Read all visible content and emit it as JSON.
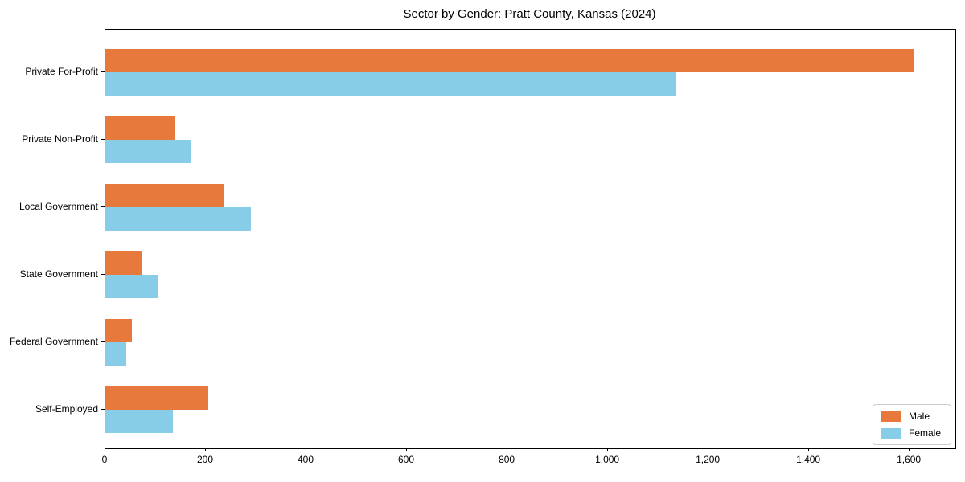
{
  "title": "Sector by Gender: Pratt County, Kansas (2024)",
  "colors": {
    "male": "#e8793d",
    "female": "#87cde8",
    "axis": "#000000",
    "legend_border": "#cccccc",
    "background": "#ffffff"
  },
  "chart_data": {
    "type": "bar",
    "orientation": "horizontal",
    "title": "Sector by Gender: Pratt County, Kansas (2024)",
    "categories": [
      "Private For-Profit",
      "Private Non-Profit",
      "Local Government",
      "State Government",
      "Federal Government",
      "Self-Employed"
    ],
    "series": [
      {
        "name": "Male",
        "color": "#e8793d",
        "values": [
          1608,
          138,
          235,
          72,
          52,
          205
        ]
      },
      {
        "name": "Female",
        "color": "#87cde8",
        "values": [
          1135,
          170,
          290,
          105,
          42,
          135
        ]
      }
    ],
    "xlabel": "",
    "ylabel": "",
    "xlim": [
      0,
      1691
    ],
    "x_ticks": [
      0,
      200,
      400,
      600,
      800,
      1000,
      1200,
      1400,
      1600
    ],
    "x_tick_labels": [
      "0",
      "200",
      "400",
      "600",
      "800",
      "1,000",
      "1,200",
      "1,400",
      "1,600"
    ],
    "grid": false,
    "legend": {
      "position": "lower right",
      "entries": [
        "Male",
        "Female"
      ]
    }
  }
}
